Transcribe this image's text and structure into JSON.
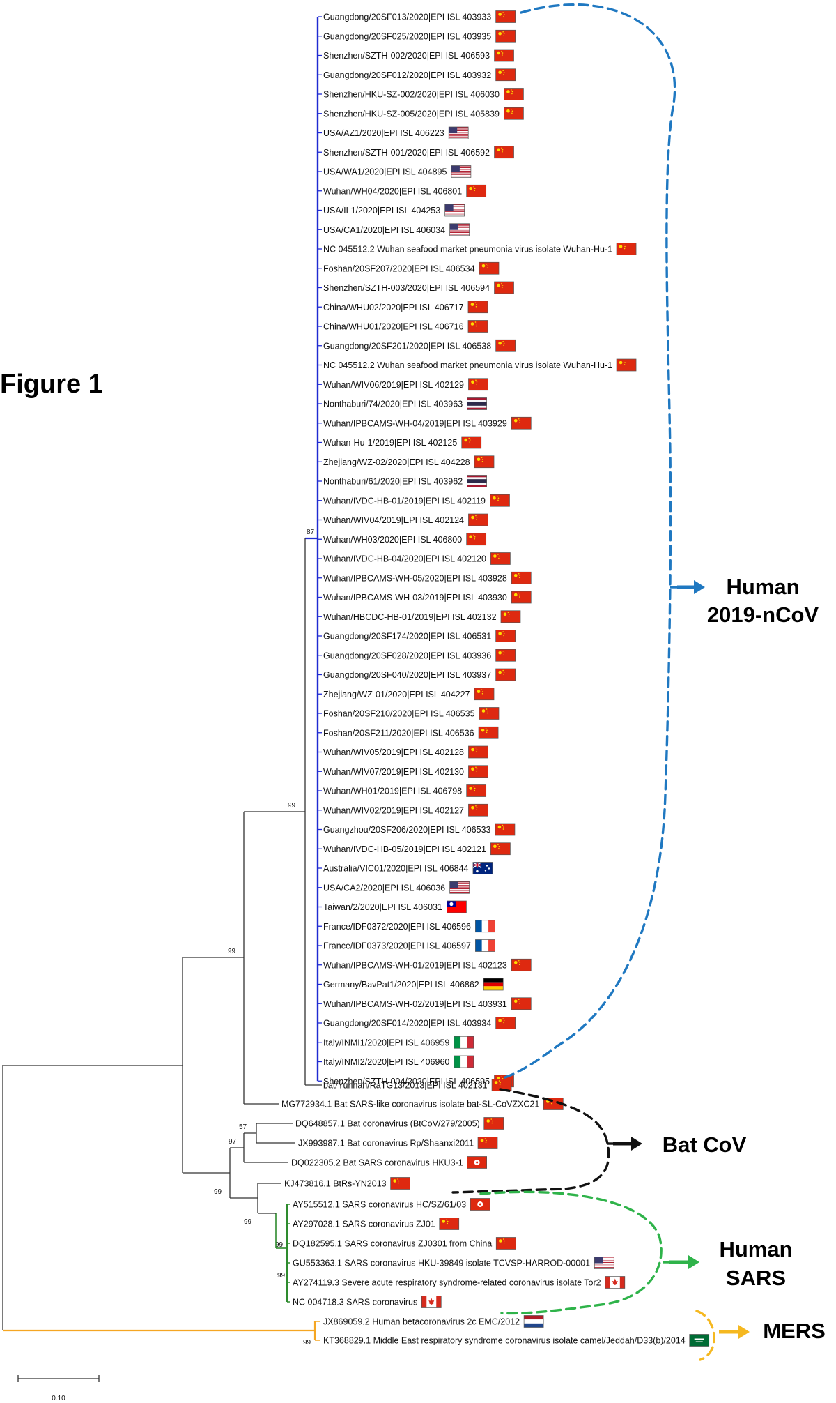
{
  "figure_title": "Figure 1",
  "scale_label": "0.10",
  "colors": {
    "ncov": "#1f2bd1",
    "sars": "#2e8b2e",
    "mers": "#f5a623",
    "tree": "#333333",
    "blue_bracket": "#1f78c1",
    "green_bracket": "#2fb34a",
    "black_bracket": "#111111",
    "yellow_bracket": "#f5b820"
  },
  "groups": [
    {
      "id": "ncov",
      "lines": [
        "Human",
        "2019-nCoV"
      ],
      "color": "#1f78c1"
    },
    {
      "id": "bat",
      "lines": [
        "Bat CoV"
      ],
      "color": "#111111"
    },
    {
      "id": "sars",
      "lines": [
        "Human",
        "SARS"
      ],
      "color": "#2fb34a"
    },
    {
      "id": "mers",
      "lines": [
        "MERS"
      ],
      "color": "#f5b820"
    }
  ],
  "bootstrap": {
    "ncov_inner": "87",
    "ncov_clade": "99",
    "sarsr_bat": "99",
    "bat_pair": "57",
    "bat_trio": "97",
    "sars_group": "99",
    "sars_inner1": "99",
    "sars_inner2": "99",
    "sars_inner3": "99",
    "mers": "99"
  },
  "ncov_leaves": [
    {
      "label": "Guangdong/20SF013/2020|EPI ISL 403933",
      "flag": "china"
    },
    {
      "label": "Guangdong/20SF025/2020|EPI ISL 403935",
      "flag": "china"
    },
    {
      "label": "Shenzhen/SZTH-002/2020|EPI ISL 406593",
      "flag": "china"
    },
    {
      "label": "Guangdong/20SF012/2020|EPI ISL 403932",
      "flag": "china"
    },
    {
      "label": "Shenzhen/HKU-SZ-002/2020|EPI ISL 406030",
      "flag": "china"
    },
    {
      "label": "Shenzhen/HKU-SZ-005/2020|EPI ISL 405839",
      "flag": "china"
    },
    {
      "label": "USA/AZ1/2020|EPI ISL 406223",
      "flag": "usa"
    },
    {
      "label": "Shenzhen/SZTH-001/2020|EPI ISL 406592",
      "flag": "china"
    },
    {
      "label": "USA/WA1/2020|EPI ISL 404895",
      "flag": "usa"
    },
    {
      "label": "Wuhan/WH04/2020|EPI ISL 406801",
      "flag": "china"
    },
    {
      "label": "USA/IL1/2020|EPI ISL 404253",
      "flag": "usa"
    },
    {
      "label": "USA/CA1/2020|EPI ISL 406034",
      "flag": "usa"
    },
    {
      "label": "NC 045512.2 Wuhan seafood market pneumonia virus isolate Wuhan-Hu-1",
      "flag": "china"
    },
    {
      "label": "Foshan/20SF207/2020|EPI ISL 406534",
      "flag": "china"
    },
    {
      "label": "Shenzhen/SZTH-003/2020|EPI ISL 406594",
      "flag": "china"
    },
    {
      "label": "China/WHU02/2020|EPI ISL 406717",
      "flag": "china"
    },
    {
      "label": "China/WHU01/2020|EPI ISL 406716",
      "flag": "china"
    },
    {
      "label": "Guangdong/20SF201/2020|EPI ISL 406538",
      "flag": "china"
    },
    {
      "label": "NC 045512.2 Wuhan seafood market pneumonia virus isolate Wuhan-Hu-1",
      "flag": "china"
    },
    {
      "label": "Wuhan/WIV06/2019|EPI ISL 402129",
      "flag": "china"
    },
    {
      "label": "Nonthaburi/74/2020|EPI ISL 403963",
      "flag": "thailand"
    },
    {
      "label": "Wuhan/IPBCAMS-WH-04/2019|EPI ISL 403929",
      "flag": "china"
    },
    {
      "label": "Wuhan-Hu-1/2019|EPI ISL 402125",
      "flag": "china"
    },
    {
      "label": "Zhejiang/WZ-02/2020|EPI ISL 404228",
      "flag": "china"
    },
    {
      "label": "Nonthaburi/61/2020|EPI ISL 403962",
      "flag": "thailand"
    },
    {
      "label": "Wuhan/IVDC-HB-01/2019|EPI ISL 402119",
      "flag": "china"
    },
    {
      "label": "Wuhan/WIV04/2019|EPI ISL 402124",
      "flag": "china"
    },
    {
      "label": "Wuhan/WH03/2020|EPI ISL 406800",
      "flag": "china"
    },
    {
      "label": "Wuhan/IVDC-HB-04/2020|EPI ISL 402120",
      "flag": "china"
    },
    {
      "label": "Wuhan/IPBCAMS-WH-05/2020|EPI ISL 403928",
      "flag": "china"
    },
    {
      "label": "Wuhan/IPBCAMS-WH-03/2019|EPI ISL 403930",
      "flag": "china"
    },
    {
      "label": "Wuhan/HBCDC-HB-01/2019|EPI ISL 402132",
      "flag": "china"
    },
    {
      "label": "Guangdong/20SF174/2020|EPI ISL 406531",
      "flag": "china"
    },
    {
      "label": "Guangdong/20SF028/2020|EPI ISL 403936",
      "flag": "china"
    },
    {
      "label": "Guangdong/20SF040/2020|EPI ISL 403937",
      "flag": "china"
    },
    {
      "label": "Zhejiang/WZ-01/2020|EPI ISL 404227",
      "flag": "china"
    },
    {
      "label": "Foshan/20SF210/2020|EPI ISL 406535",
      "flag": "china"
    },
    {
      "label": "Foshan/20SF211/2020|EPI ISL 406536",
      "flag": "china"
    },
    {
      "label": "Wuhan/WIV05/2019|EPI ISL 402128",
      "flag": "china"
    },
    {
      "label": "Wuhan/WIV07/2019|EPI ISL 402130",
      "flag": "china"
    },
    {
      "label": "Wuhan/WH01/2019|EPI ISL 406798",
      "flag": "china"
    },
    {
      "label": "Wuhan/WIV02/2019|EPI ISL 402127",
      "flag": "china"
    },
    {
      "label": "Guangzhou/20SF206/2020|EPI ISL 406533",
      "flag": "china"
    },
    {
      "label": "Wuhan/IVDC-HB-05/2019|EPI ISL 402121",
      "flag": "china"
    },
    {
      "label": "Australia/VIC01/2020|EPI ISL 406844",
      "flag": "australia"
    },
    {
      "label": "USA/CA2/2020|EPI ISL 406036",
      "flag": "usa"
    },
    {
      "label": "Taiwan/2/2020|EPI ISL 406031",
      "flag": "taiwan"
    },
    {
      "label": "France/IDF0372/2020|EPI ISL 406596",
      "flag": "france"
    },
    {
      "label": "France/IDF0373/2020|EPI ISL 406597",
      "flag": "france"
    },
    {
      "label": "Wuhan/IPBCAMS-WH-01/2019|EPI ISL 402123",
      "flag": "china"
    },
    {
      "label": "Germany/BavPat1/2020|EPI ISL 406862",
      "flag": "germany"
    },
    {
      "label": "Wuhan/IPBCAMS-WH-02/2019|EPI ISL 403931",
      "flag": "china"
    },
    {
      "label": "Guangdong/20SF014/2020|EPI ISL 403934",
      "flag": "china"
    },
    {
      "label": "Italy/INMI1/2020|EPI ISL 406959",
      "flag": "italy"
    },
    {
      "label": "Italy/INMI2/2020|EPI ISL 406960",
      "flag": "italy"
    },
    {
      "label": "Shenzhen/SZTH-004/2020|EPI ISL 406595",
      "flag": "china"
    }
  ],
  "other_leaves": {
    "ratg13": {
      "label": "bat/Yunnan/RaTG13/2013|EPI ISL 402131",
      "flag": "china"
    },
    "zxc21": {
      "label": "MG772934.1 Bat SARS-like coronavirus isolate bat-SL-CoVZXC21",
      "flag": "china"
    },
    "btcov279": {
      "label": "DQ648857.1 Bat coronavirus (BtCoV/279/2005)",
      "flag": "china"
    },
    "rp_shaanxi": {
      "label": "JX993987.1 Bat coronavirus Rp/Shaanxi2011",
      "flag": "china"
    },
    "hku3": {
      "label": "DQ022305.2 Bat SARS coronavirus HKU3-1",
      "flag": "hongkong"
    },
    "btrs": {
      "label": "KJ473816.1 BtRs-YN2013",
      "flag": "china"
    },
    "hcsz": {
      "label": "AY515512.1 SARS coronavirus HC/SZ/61/03",
      "flag": "hongkong"
    },
    "zj01": {
      "label": "AY297028.1 SARS coronavirus ZJ01",
      "flag": "china"
    },
    "zj0301": {
      "label": "DQ182595.1 SARS coronavirus ZJ0301 from China",
      "flag": "china"
    },
    "hku39849": {
      "label": "GU553363.1 SARS coronavirus HKU-39849 isolate TCVSP-HARROD-00001",
      "flag": "usa"
    },
    "tor2": {
      "label": "AY274119.3 Severe acute respiratory syndrome-related coronavirus isolate Tor2",
      "flag": "canada"
    },
    "nc004718": {
      "label": "NC 004718.3 SARS coronavirus",
      "flag": "canada"
    },
    "emc": {
      "label": "JX869059.2 Human betacoronavirus 2c EMC/2012",
      "flag": "netherlands"
    },
    "jeddah": {
      "label": "KT368829.1 Middle East respiratory syndrome coronavirus isolate camel/Jeddah/D33(b)/2014",
      "flag": "saudi"
    }
  }
}
